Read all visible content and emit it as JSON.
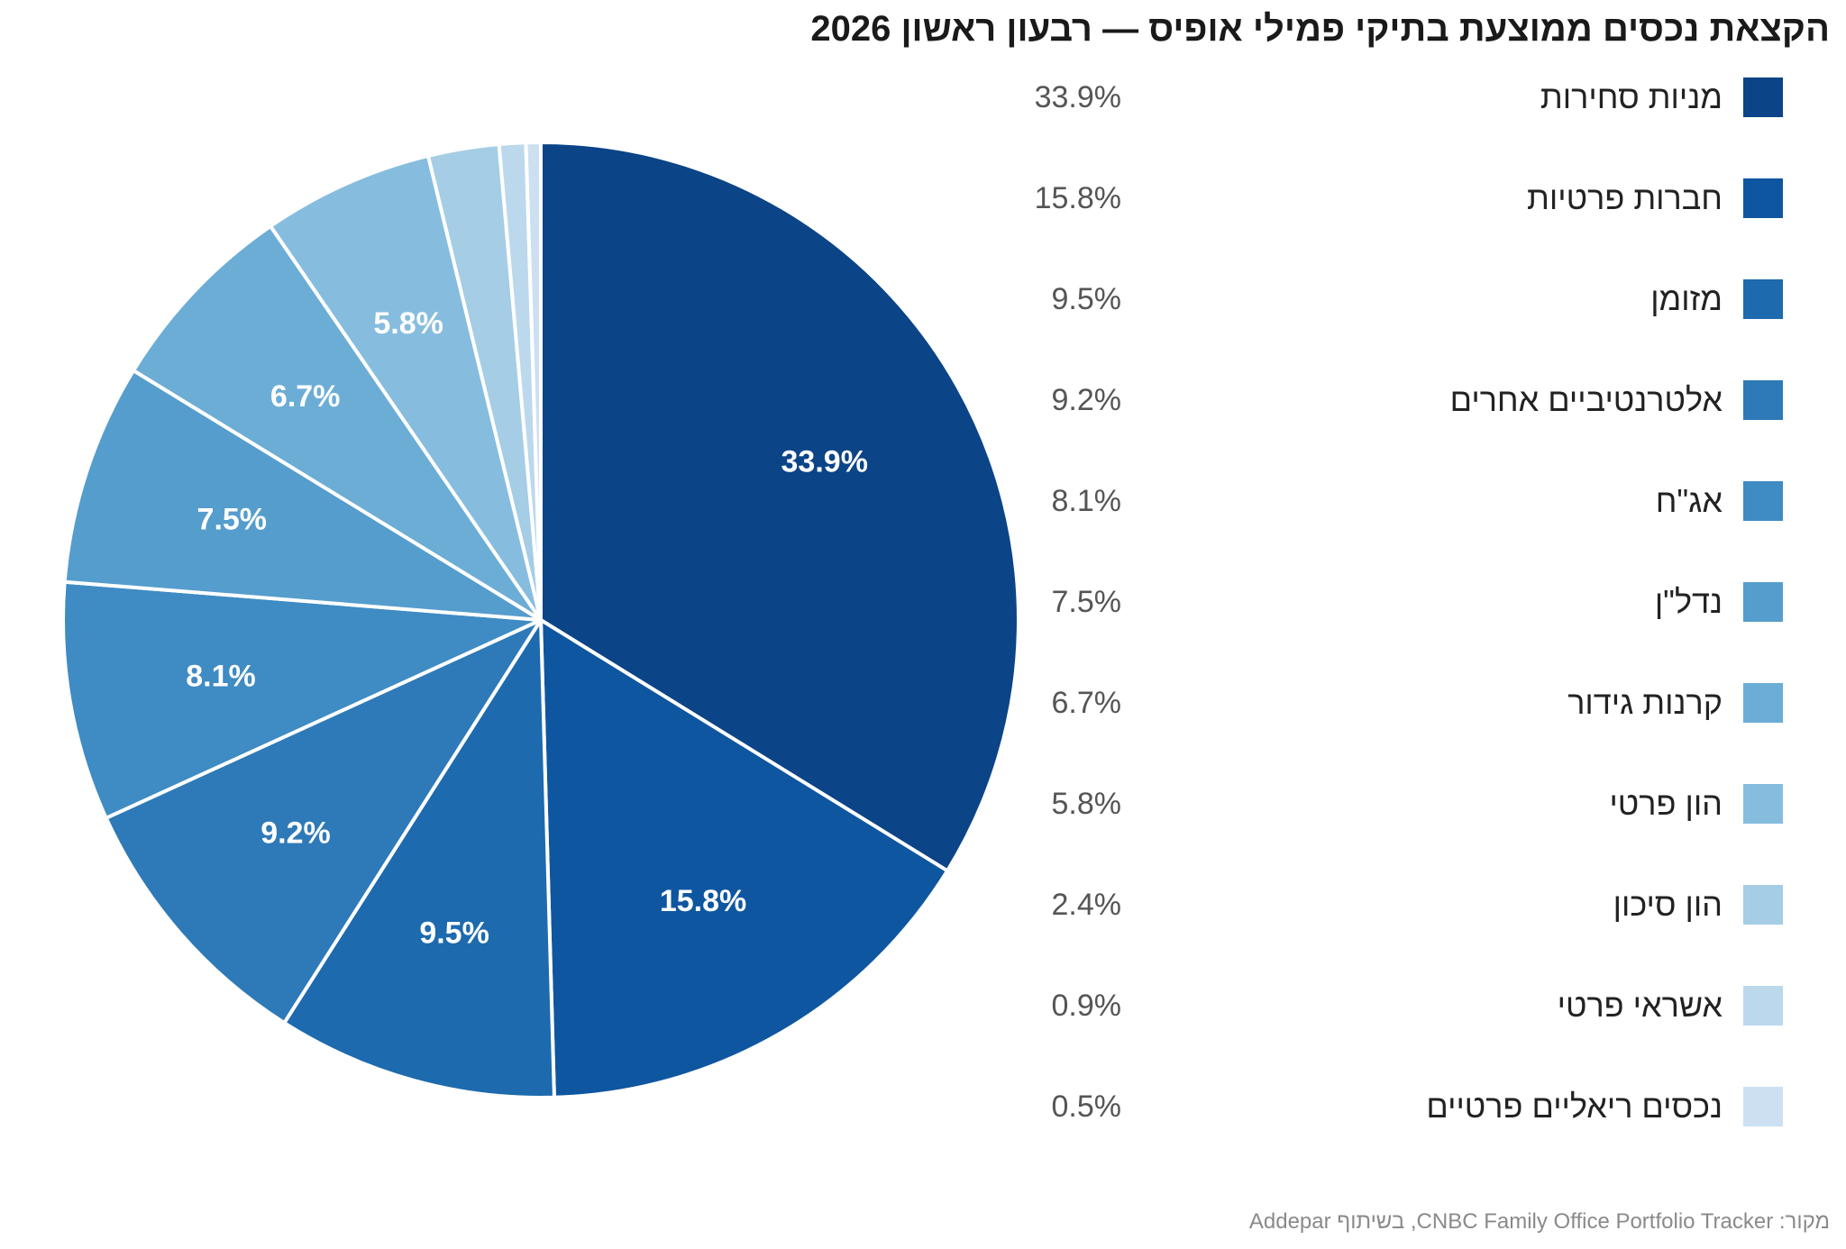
{
  "chart_data": {
    "type": "pie",
    "title": "הקצאת נכסים ממוצעת בתיקי פמילי אופיס — רבעון ראשון 2026",
    "source": "מקור: CNBC Family Office Portfolio Tracker, בשיתוף Addepar",
    "slices": [
      {
        "label": "מניות סחירות",
        "value": 33.9,
        "display": "33.9%",
        "color": "#0b4487"
      },
      {
        "label": "חברות פרטיות",
        "value": 15.8,
        "display": "15.8%",
        "color": "#0f56a0"
      },
      {
        "label": "מזומן",
        "value": 9.5,
        "display": "9.5%",
        "color": "#1d6aae"
      },
      {
        "label": "אלטרנטיביים אחרים",
        "value": 9.2,
        "display": "9.2%",
        "color": "#2e7ab8"
      },
      {
        "label": "אג\"ח",
        "value": 8.1,
        "display": "8.1%",
        "color": "#3f8bc3"
      },
      {
        "label": "נדל\"ן",
        "value": 7.5,
        "display": "7.5%",
        "color": "#559dcd"
      },
      {
        "label": "קרנות גידור",
        "value": 6.7,
        "display": "6.7%",
        "color": "#6cadd6"
      },
      {
        "label": "הון פרטי",
        "value": 5.8,
        "display": "5.8%",
        "color": "#86bddf"
      },
      {
        "label": "הון סיכון",
        "value": 2.4,
        "display": "2.4%",
        "color": "#a5cde5"
      },
      {
        "label": "אשראי פרטי",
        "value": 0.9,
        "display": "0.9%",
        "color": "#bcd8ec"
      },
      {
        "label": "נכסים ריאליים פרטיים",
        "value": 0.5,
        "display": "0.5%",
        "color": "#cde0f2"
      }
    ],
    "slice_labels_shown_min_value": 5,
    "direction": "clockwise-from-top",
    "legend_position": "right"
  }
}
